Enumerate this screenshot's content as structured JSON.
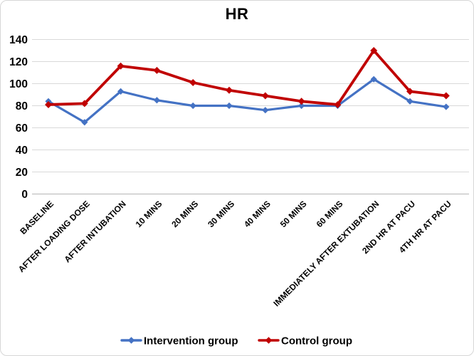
{
  "chart_data": {
    "type": "line",
    "title": "HR",
    "categories": [
      "BASELINE",
      "AFTER LOADING DOSE",
      "AFTER INTUBATION",
      "10 MINS",
      "20 MINS",
      "30 MINS",
      "40 MINS",
      "50 MINS",
      "60 MINS",
      "IMMEDIATELY AFTER EXTUBATION",
      "2ND HR AT PACU",
      "4TH HR AT PACU"
    ],
    "series": [
      {
        "name": "Intervention group",
        "color": "#4472C4",
        "marker": "diamond",
        "values": [
          84,
          65,
          93,
          85,
          80,
          80,
          76,
          80,
          80,
          104,
          84,
          79
        ]
      },
      {
        "name": "Control group",
        "color": "#C00000",
        "marker": "diamond",
        "values": [
          81,
          82,
          116,
          112,
          101,
          94,
          89,
          84,
          81,
          130,
          93,
          89
        ]
      }
    ],
    "xlabel": "",
    "ylabel": "",
    "ylim": [
      0,
      140
    ],
    "ytick_step": 20,
    "grid": true,
    "legend_position": "bottom",
    "styles": {
      "gridline_color": "#D9D9D9",
      "axis_line_color": "#BFBFBF",
      "text_color": "#000000",
      "background": "#FFFFFF",
      "frame_border_color": "#D6D6D6"
    }
  }
}
